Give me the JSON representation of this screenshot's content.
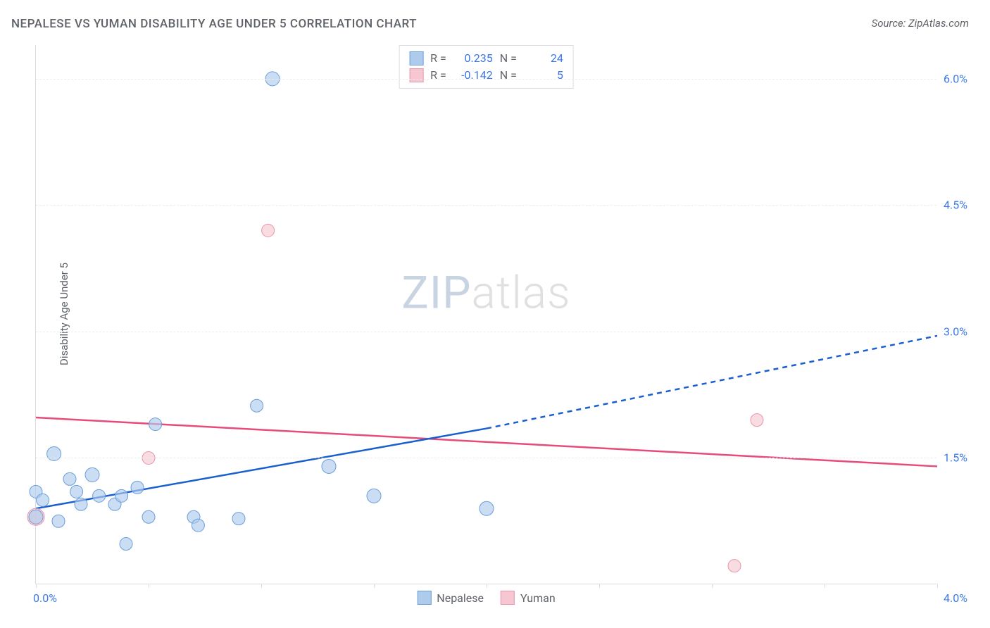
{
  "title": "NEPALESE VS YUMAN DISABILITY AGE UNDER 5 CORRELATION CHART",
  "source": "Source: ZipAtlas.com",
  "ylabel": "Disability Age Under 5",
  "watermark": {
    "part1": "ZIP",
    "part2": "atlas"
  },
  "series": {
    "nepalese": {
      "label": "Nepalese",
      "fill": "#aecbeb",
      "stroke": "#6a9edc",
      "line_color": "#1a5fd0",
      "r_value": "0.235",
      "n_value": "24",
      "points": [
        {
          "x": 0.0,
          "y": 0.8,
          "r": 10
        },
        {
          "x": 0.0,
          "y": 1.1,
          "r": 9
        },
        {
          "x": 0.03,
          "y": 1.0,
          "r": 9
        },
        {
          "x": 0.08,
          "y": 1.55,
          "r": 10
        },
        {
          "x": 0.1,
          "y": 0.75,
          "r": 9
        },
        {
          "x": 0.15,
          "y": 1.25,
          "r": 9
        },
        {
          "x": 0.18,
          "y": 1.1,
          "r": 9
        },
        {
          "x": 0.2,
          "y": 0.95,
          "r": 9
        },
        {
          "x": 0.25,
          "y": 1.3,
          "r": 10
        },
        {
          "x": 0.28,
          "y": 1.05,
          "r": 9
        },
        {
          "x": 0.35,
          "y": 0.95,
          "r": 9
        },
        {
          "x": 0.38,
          "y": 1.05,
          "r": 9
        },
        {
          "x": 0.4,
          "y": 0.48,
          "r": 9
        },
        {
          "x": 0.45,
          "y": 1.15,
          "r": 9
        },
        {
          "x": 0.5,
          "y": 0.8,
          "r": 9
        },
        {
          "x": 0.53,
          "y": 1.9,
          "r": 9
        },
        {
          "x": 0.7,
          "y": 0.8,
          "r": 9
        },
        {
          "x": 0.72,
          "y": 0.7,
          "r": 9
        },
        {
          "x": 0.9,
          "y": 0.78,
          "r": 9
        },
        {
          "x": 0.98,
          "y": 2.12,
          "r": 9
        },
        {
          "x": 1.05,
          "y": 6.0,
          "r": 10
        },
        {
          "x": 1.3,
          "y": 1.4,
          "r": 10
        },
        {
          "x": 1.5,
          "y": 1.05,
          "r": 10
        },
        {
          "x": 2.0,
          "y": 0.9,
          "r": 10
        }
      ],
      "trend": {
        "x1": 0.0,
        "y1": 0.9,
        "x2": 2.0,
        "y2": 1.85,
        "extend_x": 4.0,
        "extend_y": 2.95
      }
    },
    "yuman": {
      "label": "Yuman",
      "fill": "#f6c7d2",
      "stroke": "#e995ac",
      "line_color": "#e64b7a",
      "r_value": "-0.142",
      "n_value": "5",
      "points": [
        {
          "x": 0.0,
          "y": 0.8,
          "r": 12
        },
        {
          "x": 0.5,
          "y": 1.5,
          "r": 9
        },
        {
          "x": 1.03,
          "y": 4.2,
          "r": 9
        },
        {
          "x": 3.1,
          "y": 0.22,
          "r": 9
        },
        {
          "x": 3.2,
          "y": 1.95,
          "r": 9
        }
      ],
      "trend": {
        "x1": 0.0,
        "y1": 1.98,
        "x2": 4.0,
        "y2": 1.4
      }
    }
  },
  "axes": {
    "xlim": [
      0,
      4.0
    ],
    "ylim": [
      0,
      6.4
    ],
    "y_ticks": [
      1.5,
      3.0,
      4.5,
      6.0
    ],
    "y_tick_labels": [
      "1.5%",
      "3.0%",
      "4.5%",
      "6.0%"
    ],
    "x_ticks": [
      0.0,
      0.5,
      1.0,
      1.5,
      2.0,
      2.5,
      3.0,
      3.5,
      4.0
    ],
    "x_tick_labels": {
      "0.0": "0.0%",
      "4.0": "4.0%"
    }
  },
  "stats_box_labels": {
    "r": "R =",
    "n": "N ="
  },
  "colors": {
    "blue_text": "#3b78e7",
    "pink_text": "#e64b7a",
    "grid": "#ebecee"
  }
}
